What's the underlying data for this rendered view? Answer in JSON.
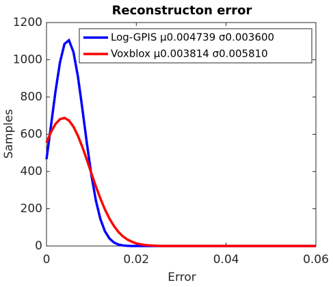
{
  "chart_data": {
    "type": "line",
    "title": "Reconstructon error",
    "x_label": "Error",
    "y_label": "Samples",
    "x": [
      0,
      0.001,
      0.002,
      0.003,
      0.004,
      0.005,
      0.006,
      0.007,
      0.008,
      0.009,
      0.01,
      0.011,
      0.012,
      0.013,
      0.014,
      0.015,
      0.016,
      0.017,
      0.018,
      0.019,
      0.02,
      0.021,
      0.022,
      0.023,
      0.024,
      0.025,
      0.026,
      0.03,
      0.04,
      0.05,
      0.06
    ],
    "series": [
      {
        "name": "Log-GPIS μ0.004739 σ0.003600",
        "color": "#0000ff",
        "values": [
          466,
          646,
          830,
          986,
          1085,
          1105,
          1042,
          910,
          735,
          550,
          381,
          244,
          145,
          80,
          41,
          19,
          8,
          3,
          1,
          0,
          0,
          0,
          0,
          0,
          0,
          0,
          0,
          0,
          0,
          0,
          0
        ]
      },
      {
        "name": "Voxblox μ0.003814 σ0.005810",
        "color": "#ff0000",
        "values": [
          555,
          612,
          655,
          681,
          688,
          674,
          641,
          592,
          531,
          462,
          390,
          320,
          255,
          197,
          148,
          108,
          76,
          52,
          35,
          23,
          14,
          9,
          5,
          3,
          2,
          1,
          0,
          0,
          0,
          0,
          0
        ]
      }
    ],
    "xlim": [
      0,
      0.06
    ],
    "xticks": [
      0,
      0.02,
      0.04,
      0.06
    ],
    "ylim": [
      0,
      1200
    ],
    "yticks": [
      0,
      200,
      400,
      600,
      800,
      1000,
      1200
    ],
    "legend": "top-right"
  }
}
